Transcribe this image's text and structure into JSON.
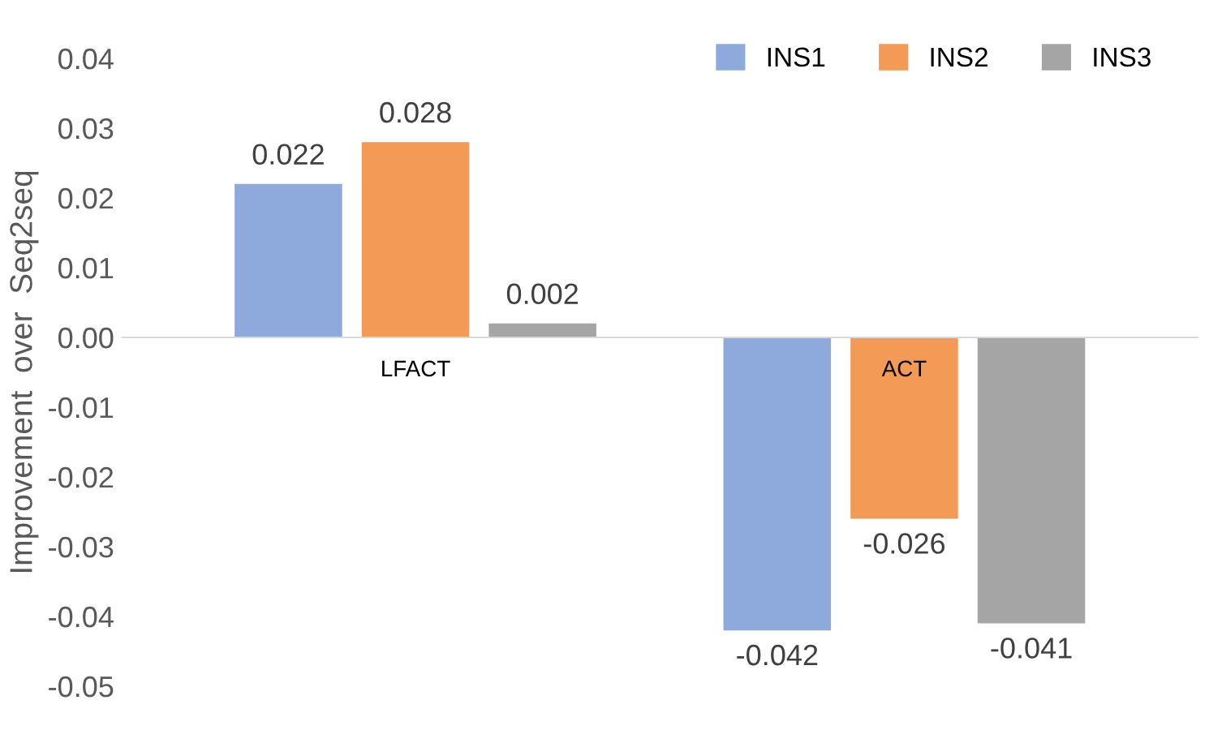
{
  "chart_data": {
    "type": "bar",
    "ylabel": "Improvement  over  Seq2seq",
    "categories": [
      "LFACT",
      "ACT"
    ],
    "series": [
      {
        "name": "INS1",
        "color": "#8eaadc",
        "values": [
          0.022,
          -0.042
        ]
      },
      {
        "name": "INS2",
        "color": "#f39a56",
        "values": [
          0.028,
          -0.026
        ]
      },
      {
        "name": "INS3",
        "color": "#a5a5a5",
        "values": [
          0.002,
          -0.041
        ]
      }
    ],
    "ylim": [
      -0.05,
      0.04
    ],
    "yticks": [
      {
        "value": -0.05,
        "label": "-0.05"
      },
      {
        "value": -0.04,
        "label": "-0.04"
      },
      {
        "value": -0.03,
        "label": "-0.03"
      },
      {
        "value": -0.02,
        "label": "-0.02"
      },
      {
        "value": -0.01,
        "label": "-0.01"
      },
      {
        "value": 0,
        "label": "0.00"
      },
      {
        "value": 0.01,
        "label": "0.01"
      },
      {
        "value": 0.02,
        "label": "0.02"
      },
      {
        "value": 0.03,
        "label": "0.03"
      },
      {
        "value": 0.04,
        "label": "0.04"
      }
    ],
    "data_labels": true,
    "legend": "top right",
    "grid": false
  }
}
